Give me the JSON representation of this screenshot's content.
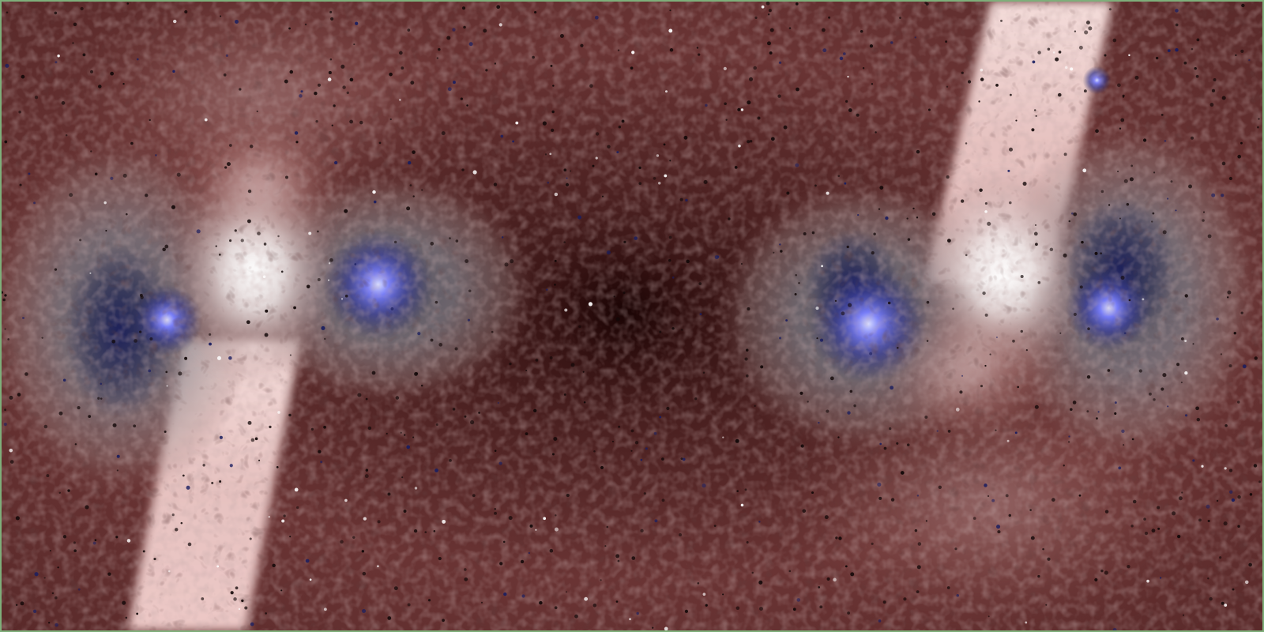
{
  "image": {
    "description": "",
    "palette": {
      "background_dark": "#2a1010",
      "background_mid": "#6a3434",
      "background_warm": "#8a4a48",
      "highlight_white": "#f4f0f0",
      "pink_band": "#e8c6c4",
      "glow_blue": "#6a70ff",
      "deep_blue": "#1e2466",
      "frame_green": "#7fae7a"
    }
  }
}
